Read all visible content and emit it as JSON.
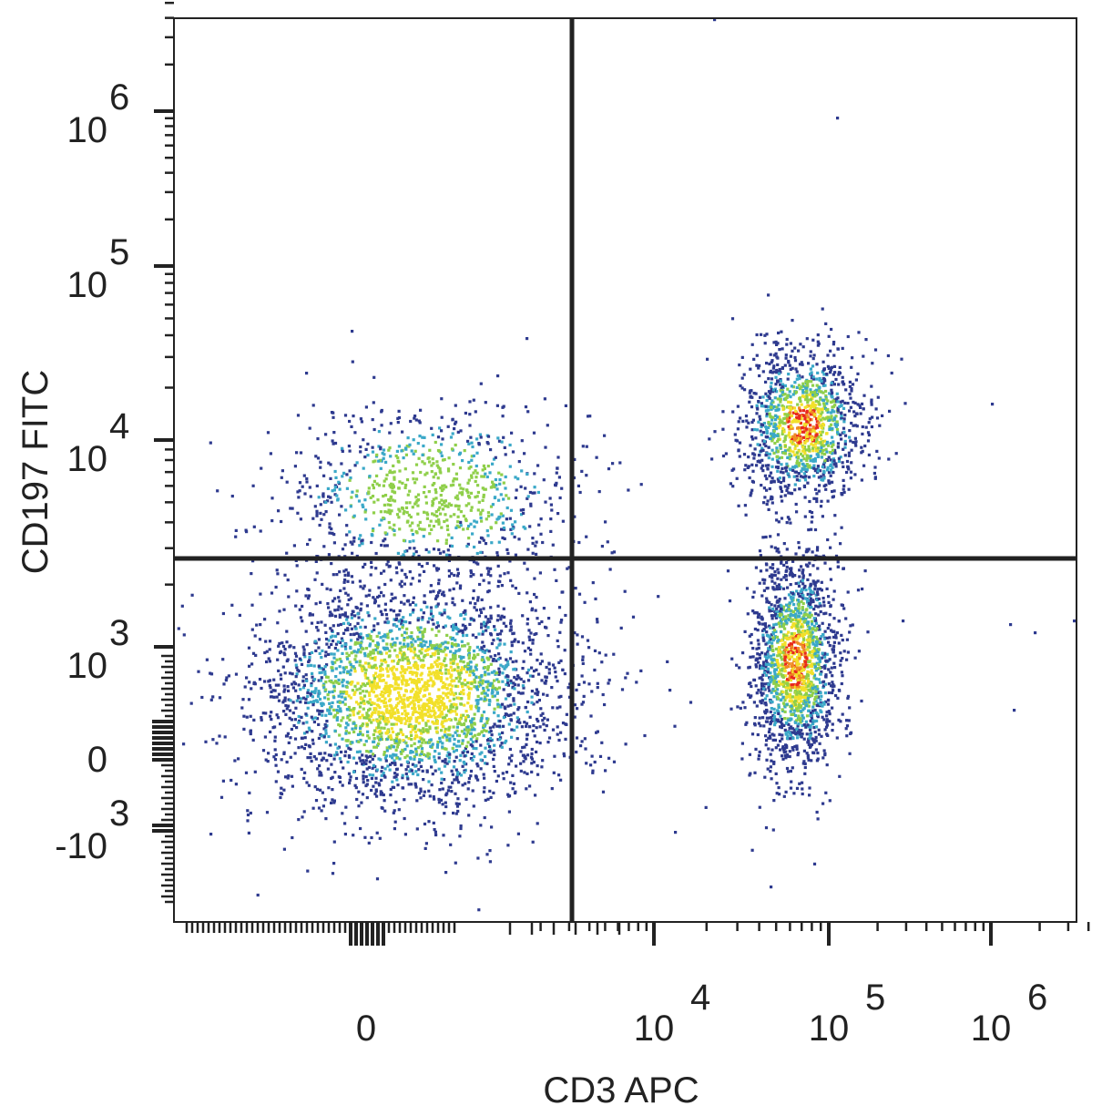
{
  "chart_data": {
    "type": "scatter",
    "style": "density-dot-plot",
    "title": "",
    "xlabel": "CD3 APC",
    "ylabel": "CD197 FITC",
    "x_scale": "biexponential",
    "y_scale": "biexponential",
    "x_ticks": [
      {
        "value": "0",
        "base": "0",
        "exp": ""
      },
      {
        "value": "10^4",
        "base": "10",
        "exp": "4"
      },
      {
        "value": "10^5",
        "base": "10",
        "exp": "5"
      },
      {
        "value": "10^6",
        "base": "10",
        "exp": "6"
      }
    ],
    "y_ticks": [
      {
        "value": "10^6",
        "base": "10",
        "exp": "6"
      },
      {
        "value": "10^5",
        "base": "10",
        "exp": "5"
      },
      {
        "value": "10^4",
        "base": "10",
        "exp": "4"
      },
      {
        "value": "10^3",
        "base": "10",
        "exp": "3"
      },
      {
        "value": "0",
        "base": "0",
        "exp": ""
      },
      {
        "value": "-10^3",
        "base": "-10",
        "exp": "3"
      }
    ],
    "gates": {
      "x": "3000",
      "y": "2500"
    },
    "populations": [
      {
        "cd3": "negative",
        "cd197": "low",
        "x_center": "400",
        "y_center": "500"
      },
      {
        "cd3": "negative",
        "cd197": "high",
        "x_center": "400",
        "y_center": "4500"
      },
      {
        "cd3": "positive",
        "cd197": "high",
        "x_center": "55000",
        "y_center": "12000"
      },
      {
        "cd3": "positive",
        "cd197": "low",
        "x_center": "50000",
        "y_center": "900"
      }
    ],
    "density_colors": [
      "#2e3a8f",
      "#3aa8c8",
      "#8fcf4a",
      "#f2e02a",
      "#f08a24",
      "#e8281e"
    ],
    "grid": false,
    "legend": "none"
  }
}
